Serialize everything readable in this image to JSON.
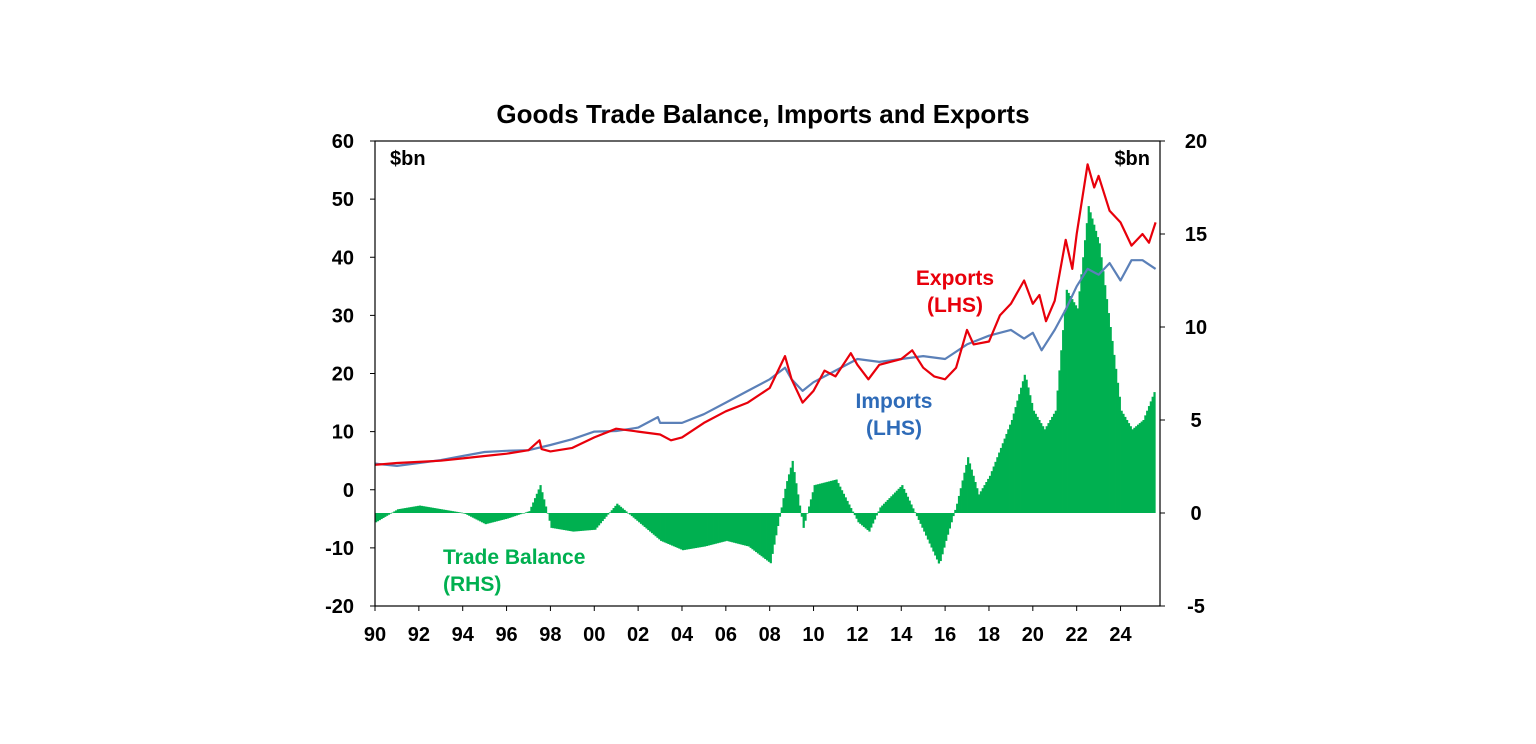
{
  "chart_data": {
    "type": "line",
    "title": "Goods Trade Balance, Imports and Exports",
    "left_axis": {
      "unit": "$bn",
      "range": [
        -20,
        60
      ],
      "ticks": [
        "60",
        "50",
        "40",
        "30",
        "20",
        "10",
        "0",
        "-10",
        "-20"
      ]
    },
    "right_axis": {
      "unit": "$bn",
      "range": [
        -5,
        20
      ],
      "ticks": [
        "20",
        "15",
        "10",
        "5",
        "0",
        "-5"
      ]
    },
    "x_axis": {
      "range": [
        1990,
        2025.8
      ],
      "ticks": [
        "90",
        "92",
        "94",
        "96",
        "98",
        "00",
        "02",
        "04",
        "06",
        "08",
        "10",
        "12",
        "14",
        "16",
        "18",
        "20",
        "22",
        "24"
      ]
    },
    "annotations": {
      "exports": [
        "Exports",
        "(LHS)"
      ],
      "imports": [
        "Imports",
        "(LHS)"
      ],
      "balance": [
        "Trade Balance",
        "(RHS)"
      ]
    },
    "series": [
      {
        "name": "Exports (LHS)",
        "axis": "left",
        "color": "#e8000b",
        "type": "line",
        "points": [
          [
            1990,
            4.3
          ],
          [
            1991,
            4.6
          ],
          [
            1992,
            4.8
          ],
          [
            1993,
            5.0
          ],
          [
            1994,
            5.4
          ],
          [
            1995,
            5.8
          ],
          [
            1996,
            6.2
          ],
          [
            1997,
            6.8
          ],
          [
            1997.5,
            8.5
          ],
          [
            1997.6,
            7.0
          ],
          [
            1998,
            6.6
          ],
          [
            1999,
            7.2
          ],
          [
            2000,
            9.0
          ],
          [
            2001,
            10.5
          ],
          [
            2002,
            10.0
          ],
          [
            2003,
            9.5
          ],
          [
            2003.5,
            8.5
          ],
          [
            2004,
            9.0
          ],
          [
            2005,
            11.5
          ],
          [
            2006,
            13.5
          ],
          [
            2007,
            15.0
          ],
          [
            2008,
            17.5
          ],
          [
            2008.7,
            23.0
          ],
          [
            2009,
            19.0
          ],
          [
            2009.5,
            15.0
          ],
          [
            2010,
            17.0
          ],
          [
            2010.5,
            20.5
          ],
          [
            2011,
            19.5
          ],
          [
            2011.7,
            23.5
          ],
          [
            2012,
            21.5
          ],
          [
            2012.5,
            19.0
          ],
          [
            2013,
            21.5
          ],
          [
            2014,
            22.5
          ],
          [
            2014.5,
            24.0
          ],
          [
            2015,
            21.0
          ],
          [
            2015.5,
            19.5
          ],
          [
            2016,
            19.0
          ],
          [
            2016.5,
            21.0
          ],
          [
            2017,
            27.5
          ],
          [
            2017.3,
            25.0
          ],
          [
            2018,
            25.5
          ],
          [
            2018.5,
            30.0
          ],
          [
            2019,
            32.0
          ],
          [
            2019.6,
            36.0
          ],
          [
            2020,
            32.0
          ],
          [
            2020.3,
            33.5
          ],
          [
            2020.6,
            29.0
          ],
          [
            2021,
            32.5
          ],
          [
            2021.5,
            43.0
          ],
          [
            2021.8,
            38.0
          ],
          [
            2022,
            44.0
          ],
          [
            2022.5,
            56.0
          ],
          [
            2022.8,
            52.0
          ],
          [
            2023,
            54.0
          ],
          [
            2023.5,
            48.0
          ],
          [
            2024,
            46.0
          ],
          [
            2024.5,
            42.0
          ],
          [
            2025,
            44.0
          ],
          [
            2025.3,
            42.5
          ],
          [
            2025.6,
            46.0
          ]
        ]
      },
      {
        "name": "Imports (LHS)",
        "axis": "left",
        "color": "#5b80b8",
        "type": "line",
        "points": [
          [
            1990,
            4.5
          ],
          [
            1991,
            4.1
          ],
          [
            1992,
            4.6
          ],
          [
            1993,
            5.1
          ],
          [
            1994,
            5.8
          ],
          [
            1995,
            6.5
          ],
          [
            1996,
            6.7
          ],
          [
            1997,
            6.8
          ],
          [
            1998,
            7.7
          ],
          [
            1999,
            8.7
          ],
          [
            2000,
            10.0
          ],
          [
            2001,
            10.1
          ],
          [
            2002,
            10.7
          ],
          [
            2002.9,
            12.5
          ],
          [
            2003,
            11.5
          ],
          [
            2004,
            11.5
          ],
          [
            2005,
            13.0
          ],
          [
            2006,
            15.0
          ],
          [
            2007,
            17.0
          ],
          [
            2008,
            19.0
          ],
          [
            2008.7,
            21.0
          ],
          [
            2009,
            19.0
          ],
          [
            2009.5,
            17.0
          ],
          [
            2010,
            18.5
          ],
          [
            2011,
            20.5
          ],
          [
            2012,
            22.5
          ],
          [
            2013,
            22.0
          ],
          [
            2014,
            22.5
          ],
          [
            2015,
            23.0
          ],
          [
            2016,
            22.5
          ],
          [
            2017,
            25.0
          ],
          [
            2018,
            26.5
          ],
          [
            2019,
            27.5
          ],
          [
            2019.6,
            26.0
          ],
          [
            2020,
            27.0
          ],
          [
            2020.4,
            24.0
          ],
          [
            2021,
            27.5
          ],
          [
            2021.5,
            31.0
          ],
          [
            2022,
            35.0
          ],
          [
            2022.5,
            38.0
          ],
          [
            2023,
            37.0
          ],
          [
            2023.5,
            39.0
          ],
          [
            2024,
            36.0
          ],
          [
            2024.5,
            39.5
          ],
          [
            2025,
            39.5
          ],
          [
            2025.6,
            38.0
          ]
        ]
      },
      {
        "name": "Trade Balance (RHS)",
        "axis": "right",
        "color": "#00b050",
        "type": "bar",
        "points": [
          [
            1990,
            -0.5
          ],
          [
            1991,
            0.2
          ],
          [
            1992,
            0.4
          ],
          [
            1993,
            0.2
          ],
          [
            1994,
            0.0
          ],
          [
            1995,
            -0.6
          ],
          [
            1996,
            -0.3
          ],
          [
            1997,
            0.1
          ],
          [
            1997.5,
            1.5
          ],
          [
            1998,
            -0.8
          ],
          [
            1999,
            -1.0
          ],
          [
            2000,
            -0.9
          ],
          [
            2001,
            0.5
          ],
          [
            2002,
            -0.5
          ],
          [
            2003,
            -1.5
          ],
          [
            2004,
            -2.0
          ],
          [
            2005,
            -1.8
          ],
          [
            2006,
            -1.5
          ],
          [
            2007,
            -1.8
          ],
          [
            2008,
            -2.7
          ],
          [
            2008.7,
            1.5
          ],
          [
            2009,
            2.8
          ],
          [
            2009.5,
            -0.8
          ],
          [
            2010,
            1.5
          ],
          [
            2011,
            1.8
          ],
          [
            2012,
            -0.5
          ],
          [
            2012.5,
            -1.0
          ],
          [
            2013,
            0.3
          ],
          [
            2014,
            1.5
          ],
          [
            2015,
            -1.0
          ],
          [
            2015.7,
            -2.8
          ],
          [
            2016,
            -1.5
          ],
          [
            2016.5,
            0.5
          ],
          [
            2017,
            3.0
          ],
          [
            2017.5,
            1.0
          ],
          [
            2018,
            2.0
          ],
          [
            2018.5,
            3.5
          ],
          [
            2019,
            5.0
          ],
          [
            2019.6,
            7.5
          ],
          [
            2020,
            5.5
          ],
          [
            2020.5,
            4.5
          ],
          [
            2021,
            5.5
          ],
          [
            2021.5,
            12.0
          ],
          [
            2022,
            11.0
          ],
          [
            2022.5,
            16.5
          ],
          [
            2023,
            14.5
          ],
          [
            2023.5,
            10.0
          ],
          [
            2024,
            5.5
          ],
          [
            2024.5,
            4.5
          ],
          [
            2025,
            5.0
          ],
          [
            2025.5,
            6.5
          ]
        ]
      }
    ]
  }
}
